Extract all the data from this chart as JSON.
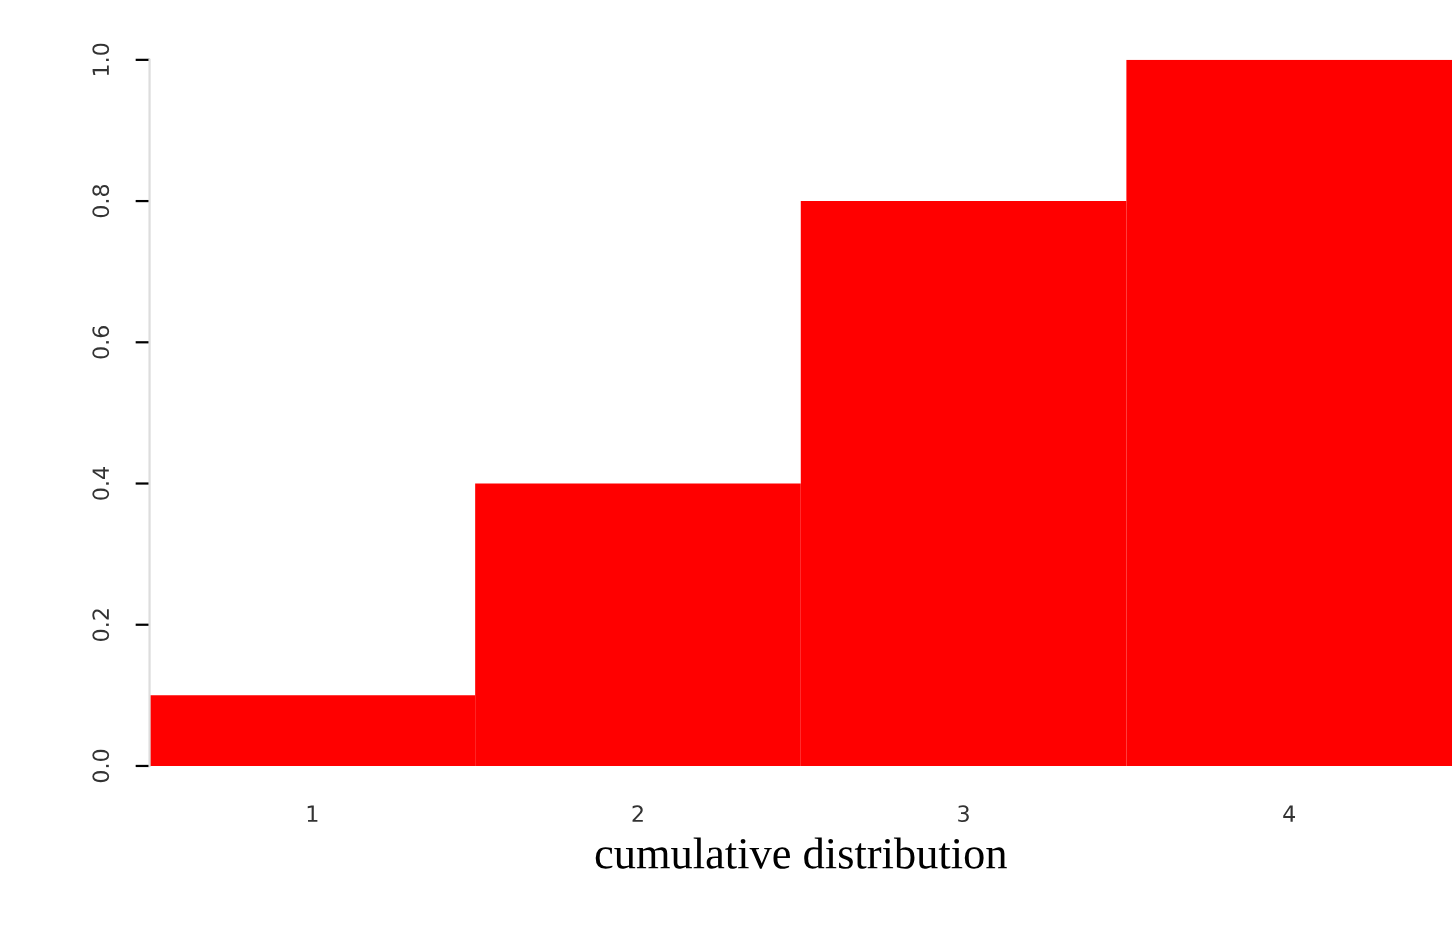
{
  "chart_data": {
    "type": "bar",
    "xlabel": "cumulative distribution",
    "categories": [
      "1",
      "2",
      "3",
      "4"
    ],
    "values": [
      0.1,
      0.4,
      0.8,
      1.0
    ],
    "color": "#ff0000",
    "ylim": [
      0,
      1.0
    ],
    "yticks": [
      {
        "value": 0,
        "label": "0.0"
      },
      {
        "value": 0.2,
        "label": "0.2"
      },
      {
        "value": 0.4,
        "label": "0.4"
      },
      {
        "value": 0.6,
        "label": "0.6"
      },
      {
        "value": 0.8,
        "label": "0.8"
      },
      {
        "value": 1.0,
        "label": "1.0"
      }
    ],
    "grid": false,
    "legend": false
  }
}
